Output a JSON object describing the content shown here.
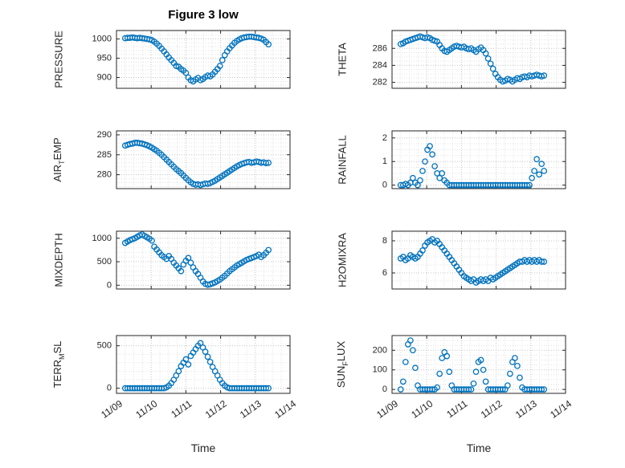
{
  "figure": {
    "title": "Figure 3 low",
    "background": "#ffffff",
    "axis_color": "#262626",
    "grid_color": "#c4c4c4",
    "minor_grid_color": "#e2e2e2"
  },
  "chart_data": {
    "type": "scatter",
    "title": "Figure 3 low",
    "xlabel": "Time",
    "layout": "4x2 subplot grid, shared time axis, open-circle markers, major+minor dotted grid",
    "marker": "circle-open",
    "marker_color": "#0072BD",
    "xlim": [
      0,
      5
    ],
    "xticks": [
      0,
      1,
      2,
      3,
      4,
      5
    ],
    "xtick_labels": [
      "11/09",
      "11/10",
      "11/11",
      "11/12",
      "11/13",
      "11/14"
    ],
    "x_minor_step": 0.25,
    "x": [
      0.25,
      0.32,
      0.39,
      0.46,
      0.53,
      0.6,
      0.67,
      0.74,
      0.81,
      0.88,
      0.95,
      1.02,
      1.09,
      1.16,
      1.23,
      1.3,
      1.37,
      1.44,
      1.51,
      1.58,
      1.65,
      1.72,
      1.79,
      1.86,
      1.93,
      2,
      2.07,
      2.14,
      2.21,
      2.28,
      2.35,
      2.42,
      2.49,
      2.56,
      2.63,
      2.7,
      2.77,
      2.84,
      2.91,
      2.98,
      3.05,
      3.12,
      3.19,
      3.26,
      3.33,
      3.4,
      3.47,
      3.54,
      3.61,
      3.68,
      3.75,
      3.82,
      3.89,
      3.96,
      4.03,
      4.1,
      4.17,
      4.24,
      4.31,
      4.38
    ],
    "subplots": [
      {
        "ylabel": "PRESSURE",
        "row": 0,
        "col": 0,
        "yticks": [
          900,
          950,
          1000
        ],
        "ylim": [
          872,
          1022
        ],
        "y_minor_step": 10,
        "values": [
          1002,
          1003,
          1003,
          1004,
          1003,
          1002,
          1003,
          1002,
          1001,
          1000,
          999,
          997,
          993,
          988,
          982,
          975,
          968,
          960,
          952,
          945,
          938,
          930,
          928,
          922,
          918,
          912,
          900,
          893,
          890,
          895,
          899,
          893,
          896,
          901,
          905,
          903,
          908,
          915,
          922,
          930,
          945,
          958,
          968,
          976,
          983,
          990,
          995,
          999,
          1002,
          1004,
          1005,
          1006,
          1006,
          1005,
          1004,
          1003,
          1001,
          998,
          992,
          986
        ]
      },
      {
        "ylabel": "THETA",
        "row": 0,
        "col": 1,
        "yticks": [
          282,
          284,
          286
        ],
        "ylim": [
          281.3,
          288.1
        ],
        "y_minor_step": 0.5,
        "values": [
          286.5,
          286.6,
          286.8,
          286.9,
          287.0,
          287.1,
          287.2,
          287.3,
          287.4,
          287.3,
          287.2,
          287.3,
          287.2,
          287.0,
          286.9,
          286.8,
          286.4,
          286.0,
          285.7,
          285.6,
          285.8,
          286.0,
          286.2,
          286.3,
          286.2,
          286.1,
          286.2,
          286.0,
          285.9,
          286.0,
          285.8,
          285.6,
          285.9,
          286.1,
          285.8,
          285.4,
          284.8,
          284.2,
          283.6,
          283.0,
          282.6,
          282.3,
          282.1,
          282.2,
          282.4,
          282.3,
          282.1,
          282.3,
          282.5,
          282.4,
          282.6,
          282.7,
          282.6,
          282.8,
          282.7,
          282.8,
          282.9,
          282.8,
          282.7,
          282.8
        ]
      },
      {
        "ylabel": "AIR_TEMP",
        "row": 1,
        "col": 0,
        "yticks": [
          280,
          285,
          290
        ],
        "ylim": [
          276.5,
          291
        ],
        "y_minor_step": 1,
        "values": [
          287.3,
          287.5,
          287.7,
          287.8,
          288.0,
          288.0,
          287.9,
          287.8,
          287.6,
          287.4,
          287.1,
          286.8,
          286.4,
          286.0,
          285.5,
          285.0,
          284.4,
          283.8,
          283.2,
          282.6,
          282.0,
          281.4,
          280.9,
          280.4,
          279.8,
          279.2,
          278.6,
          278.1,
          277.7,
          277.5,
          277.6,
          277.4,
          277.6,
          277.8,
          277.7,
          277.9,
          278.2,
          278.5,
          278.9,
          279.3,
          279.7,
          280.1,
          280.5,
          280.9,
          281.3,
          281.7,
          282.1,
          282.4,
          282.7,
          282.9,
          283.1,
          283.2,
          283.0,
          283.1,
          283.3,
          283.2,
          283.0,
          283.1,
          282.9,
          283.0
        ]
      },
      {
        "ylabel": "RAINFALL",
        "row": 1,
        "col": 1,
        "yticks": [
          0,
          1,
          2
        ],
        "ylim": [
          -0.15,
          2.3
        ],
        "y_minor_step": 0.25,
        "values": [
          0,
          0,
          0.05,
          0,
          0.1,
          0.3,
          0.1,
          0,
          0.2,
          0.6,
          1,
          1.5,
          1.65,
          1.3,
          0.8,
          0.5,
          0.3,
          0.5,
          0.2,
          0.1,
          0,
          0,
          0,
          0,
          0,
          0,
          0,
          0,
          0,
          0,
          0,
          0,
          0,
          0,
          0,
          0,
          0,
          0,
          0,
          0,
          0,
          0,
          0,
          0,
          0,
          0,
          0,
          0,
          0,
          0,
          0,
          0,
          0,
          0,
          0.3,
          0.6,
          1.1,
          0.45,
          0.9,
          0.6
        ]
      },
      {
        "ylabel": "MIXDEPTH",
        "row": 2,
        "col": 0,
        "yticks": [
          0,
          500,
          1000
        ],
        "ylim": [
          -80,
          1150
        ],
        "y_minor_step": 100,
        "values": [
          900,
          930,
          960,
          980,
          1000,
          1030,
          1060,
          1080,
          1050,
          1020,
          990,
          950,
          820,
          760,
          700,
          640,
          600,
          560,
          620,
          560,
          480,
          420,
          360,
          300,
          440,
          520,
          580,
          480,
          380,
          300,
          240,
          160,
          80,
          30,
          10,
          20,
          40,
          60,
          90,
          120,
          160,
          200,
          250,
          300,
          340,
          380,
          420,
          450,
          480,
          510,
          540,
          560,
          580,
          600,
          620,
          650,
          600,
          640,
          690,
          750
        ]
      },
      {
        "ylabel": "H2OMIXRA",
        "row": 2,
        "col": 1,
        "yticks": [
          6,
          8
        ],
        "ylim": [
          5.0,
          8.6
        ],
        "y_minor_step": 0.5,
        "values": [
          6.9,
          7.0,
          6.8,
          6.9,
          7.1,
          7.0,
          6.9,
          7.0,
          7.2,
          7.4,
          7.7,
          7.9,
          8.0,
          8.1,
          7.9,
          8.0,
          7.8,
          7.6,
          7.4,
          7.2,
          7.0,
          6.8,
          6.6,
          6.4,
          6.2,
          6.0,
          5.8,
          5.7,
          5.6,
          5.5,
          5.6,
          5.4,
          5.5,
          5.6,
          5.5,
          5.6,
          5.5,
          5.7,
          5.6,
          5.7,
          5.8,
          5.9,
          6.0,
          6.1,
          6.2,
          6.3,
          6.4,
          6.5,
          6.6,
          6.7,
          6.7,
          6.8,
          6.7,
          6.8,
          6.7,
          6.8,
          6.7,
          6.8,
          6.7,
          6.7
        ]
      },
      {
        "ylabel": "TERR_MSL",
        "row": 3,
        "col": 0,
        "yticks": [
          0,
          500
        ],
        "ylim": [
          -60,
          620
        ],
        "y_minor_step": 100,
        "values": [
          0,
          0,
          0,
          0,
          0,
          0,
          0,
          0,
          0,
          0,
          0,
          0,
          0,
          0,
          0,
          0,
          0,
          10,
          30,
          60,
          100,
          150,
          200,
          260,
          300,
          340,
          280,
          380,
          420,
          460,
          500,
          530,
          480,
          430,
          370,
          310,
          250,
          200,
          150,
          100,
          60,
          30,
          10,
          0,
          0,
          0,
          0,
          0,
          0,
          0,
          0,
          0,
          0,
          0,
          0,
          0,
          0,
          0,
          0,
          0
        ]
      },
      {
        "ylabel": "SUN_FLUX",
        "row": 3,
        "col": 1,
        "yticks": [
          0,
          100,
          200
        ],
        "ylim": [
          -20,
          275
        ],
        "y_minor_step": 25,
        "values": [
          0,
          40,
          140,
          230,
          250,
          200,
          110,
          20,
          0,
          0,
          0,
          0,
          0,
          0,
          0,
          10,
          80,
          160,
          190,
          170,
          90,
          20,
          0,
          0,
          0,
          0,
          0,
          0,
          0,
          0,
          30,
          90,
          140,
          150,
          100,
          40,
          0,
          0,
          0,
          0,
          0,
          0,
          0,
          0,
          20,
          80,
          140,
          160,
          120,
          60,
          10,
          0,
          0,
          0,
          0,
          0,
          0,
          0,
          0,
          0
        ]
      }
    ]
  }
}
